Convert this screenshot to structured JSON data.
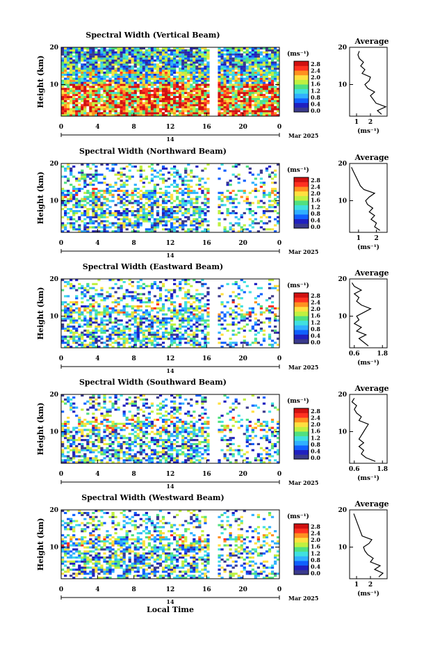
{
  "figure": {
    "xlabel": "Local Time",
    "date_label": "Mar 2025",
    "day_label": "14"
  },
  "colorbar": {
    "unit": "(ms⁻¹)",
    "ticks": [
      "2.8",
      "2.4",
      "2.0",
      "1.6",
      "1.2",
      "0.8",
      "0.4",
      "0.0"
    ],
    "colors": [
      "#3a3a8c",
      "#2020c0",
      "#1060ff",
      "#30b0ff",
      "#40e0e0",
      "#50e080",
      "#c0f040",
      "#ffe040",
      "#ff9020",
      "#ff3020",
      "#d01010"
    ]
  },
  "chart_data": [
    {
      "type": "heatmap",
      "title": "Spectral Width (Vertical Beam)",
      "ylabel": "Height (km)",
      "xlim": [
        0,
        24
      ],
      "ylim": [
        1.5,
        20
      ],
      "x_ticks": [
        "0",
        "4",
        "8",
        "12",
        "16",
        "20",
        "0"
      ],
      "y_ticks": [
        "20",
        "10"
      ],
      "color_range": [
        0.0,
        2.8
      ],
      "avg_title": "Average",
      "avg_xlabel": "(ms⁻¹)",
      "avg_ticks": [
        "1",
        "2"
      ],
      "avg_xlim": [
        0.5,
        3.2
      ],
      "average_profile": {
        "height": [
          2,
          3,
          4,
          5,
          6,
          7,
          8,
          9,
          10,
          11,
          12,
          13,
          14,
          15,
          16,
          17,
          18,
          19
        ],
        "value": [
          2.8,
          2.5,
          3.1,
          2.4,
          2.2,
          2.0,
          2.3,
          1.8,
          1.6,
          1.9,
          2.0,
          1.4,
          1.6,
          1.3,
          1.5,
          1.2,
          1.1,
          1.2
        ]
      }
    },
    {
      "type": "heatmap",
      "title": "Spectral Width (Northward Beam)",
      "ylabel": "Height (km)",
      "xlim": [
        0,
        24
      ],
      "ylim": [
        1.5,
        20
      ],
      "x_ticks": [
        "0",
        "4",
        "8",
        "12",
        "16",
        "20",
        "0"
      ],
      "y_ticks": [
        "20",
        "10"
      ],
      "color_range": [
        0.0,
        2.8
      ],
      "avg_title": "Average",
      "avg_xlabel": "(ms⁻¹)",
      "avg_ticks": [
        "1",
        "2"
      ],
      "avg_xlim": [
        0.5,
        2.6
      ],
      "average_profile": {
        "height": [
          2,
          3,
          4,
          5,
          6,
          7,
          8,
          9,
          10,
          11,
          12,
          13,
          14,
          15,
          16,
          17,
          18,
          19
        ],
        "value": [
          2.2,
          1.9,
          2.0,
          1.7,
          1.9,
          1.6,
          1.8,
          1.5,
          1.4,
          1.6,
          1.9,
          1.3,
          1.1,
          1.0,
          0.9,
          0.8,
          0.7,
          0.6
        ]
      }
    },
    {
      "type": "heatmap",
      "title": "Spectral Width (Eastward Beam)",
      "ylabel": "Height (km)",
      "xlim": [
        0,
        24
      ],
      "ylim": [
        1.5,
        20
      ],
      "x_ticks": [
        "0",
        "4",
        "8",
        "12",
        "16",
        "20",
        "0"
      ],
      "y_ticks": [
        "20",
        "10"
      ],
      "color_range": [
        0.0,
        2.8
      ],
      "avg_title": "Average",
      "avg_xlabel": "(ms⁻¹)",
      "avg_ticks": [
        "0.6",
        "1.8"
      ],
      "avg_xlim": [
        0.4,
        2.0
      ],
      "average_profile": {
        "height": [
          2,
          3,
          4,
          5,
          6,
          7,
          8,
          9,
          10,
          11,
          12,
          13,
          14,
          15,
          16,
          17,
          18,
          19
        ],
        "value": [
          1.2,
          1.0,
          0.8,
          1.1,
          0.7,
          0.9,
          0.6,
          0.8,
          0.7,
          1.0,
          1.3,
          0.9,
          0.7,
          0.8,
          0.6,
          0.9,
          0.6,
          0.5
        ]
      }
    },
    {
      "type": "heatmap",
      "title": "Spectral Width (Southward Beam)",
      "ylabel": "Height (km)",
      "xlim": [
        0,
        24
      ],
      "ylim": [
        1.5,
        20
      ],
      "x_ticks": [
        "0",
        "4",
        "8",
        "12",
        "16",
        "20",
        "0"
      ],
      "y_ticks": [
        "20",
        "10"
      ],
      "color_range": [
        0.0,
        2.8
      ],
      "avg_title": "Average",
      "avg_xlabel": "(ms⁻¹)",
      "avg_ticks": [
        "0.6",
        "1.8"
      ],
      "avg_xlim": [
        0.4,
        2.0
      ],
      "average_profile": {
        "height": [
          2,
          3,
          4,
          5,
          6,
          7,
          8,
          9,
          10,
          11,
          12,
          13,
          14,
          15,
          16,
          17,
          18,
          19
        ],
        "value": [
          1.5,
          1.1,
          0.9,
          1.0,
          0.8,
          1.0,
          0.8,
          0.9,
          1.0,
          1.1,
          1.2,
          0.8,
          0.9,
          0.7,
          0.6,
          0.7,
          0.5,
          0.6
        ]
      }
    },
    {
      "type": "heatmap",
      "title": "Spectral Width (Westward Beam)",
      "ylabel": "Height (km)",
      "xlim": [
        0,
        24
      ],
      "ylim": [
        1.5,
        20
      ],
      "x_ticks": [
        "0",
        "4",
        "8",
        "12",
        "16",
        "20",
        "0"
      ],
      "y_ticks": [
        "20",
        "10"
      ],
      "color_range": [
        0.0,
        2.8
      ],
      "avg_title": "Average",
      "avg_xlabel": "(ms⁻¹)",
      "avg_ticks": [
        "1",
        "2"
      ],
      "avg_xlim": [
        0.5,
        3.2
      ],
      "average_profile": {
        "height": [
          2,
          3,
          4,
          5,
          6,
          7,
          8,
          9,
          10,
          11,
          12,
          13,
          14,
          15,
          16,
          17,
          18,
          19
        ],
        "value": [
          2.6,
          2.9,
          2.3,
          2.7,
          2.0,
          2.2,
          1.8,
          1.6,
          1.5,
          1.9,
          2.1,
          1.4,
          1.3,
          1.2,
          1.1,
          1.0,
          0.9,
          0.8
        ]
      }
    }
  ]
}
